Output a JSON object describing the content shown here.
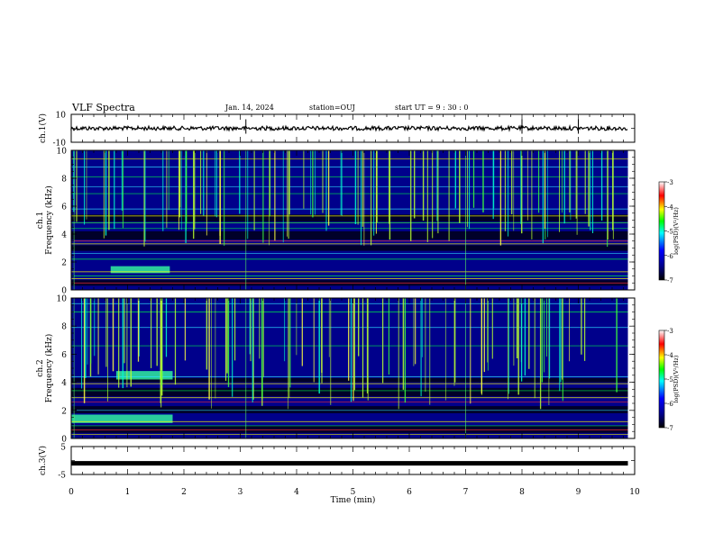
{
  "header": {
    "title": "VLF Spectra",
    "date": "Jan. 14, 2024",
    "station": "station=OUJ",
    "start": "start UT =  9 : 30 : 0"
  },
  "chart_data": [
    {
      "type": "line",
      "id": "ch1-waveform",
      "ylabel": "ch.1(V)",
      "ylim": [
        -10,
        10
      ],
      "yticks": [
        "10",
        "-10"
      ],
      "xlim": [
        0,
        10
      ],
      "trace_level": 0,
      "trace_color": "#000000",
      "spike_times": [
        3.1,
        8.0,
        9.0
      ]
    },
    {
      "type": "heatmap",
      "id": "ch1-spectrogram",
      "ylabel": "ch.1",
      "ylabel2": "Frequency (kHz)",
      "ylim": [
        0,
        10
      ],
      "yticks": [
        "0",
        "2",
        "4",
        "6",
        "8",
        "10"
      ],
      "xlim": [
        0,
        10
      ],
      "colorbar": {
        "label": "log(PSD)(V²/Hz)",
        "range": [
          -7,
          -3
        ],
        "ticks": [
          "-3",
          "-4",
          "-5",
          "-6",
          "-7"
        ],
        "colors": [
          "#000000",
          "#00008b",
          "#0000ff",
          "#00ffff",
          "#00ff00",
          "#ffff00",
          "#ff0000",
          "#ffffff"
        ]
      }
    },
    {
      "type": "heatmap",
      "id": "ch2-spectrogram",
      "ylabel": "ch.2",
      "ylabel2": "Frequency (kHz)",
      "ylim": [
        0,
        10
      ],
      "yticks": [
        "0",
        "2",
        "4",
        "6",
        "8",
        "10"
      ],
      "xlim": [
        0,
        10
      ],
      "colorbar": {
        "label": "log(PSD)(V²/Hz)",
        "range": [
          -7,
          -3
        ],
        "ticks": [
          "-3",
          "-4",
          "-5",
          "-6",
          "-7"
        ],
        "colors": [
          "#000000",
          "#00008b",
          "#0000ff",
          "#00ffff",
          "#00ff00",
          "#ffff00",
          "#ff0000",
          "#ffffff"
        ]
      }
    },
    {
      "type": "line",
      "id": "ch3-waveform",
      "ylabel": "ch.3(V)",
      "ylim": [
        -5,
        5
      ],
      "yticks": [
        "5",
        "-5"
      ],
      "xlim": [
        0,
        10
      ],
      "trace_level": -1,
      "trace_color": "#000000",
      "xlabel": "Time (min)",
      "xticks": [
        "0",
        "1",
        "2",
        "3",
        "4",
        "5",
        "6",
        "7",
        "8",
        "9",
        "10"
      ]
    }
  ]
}
